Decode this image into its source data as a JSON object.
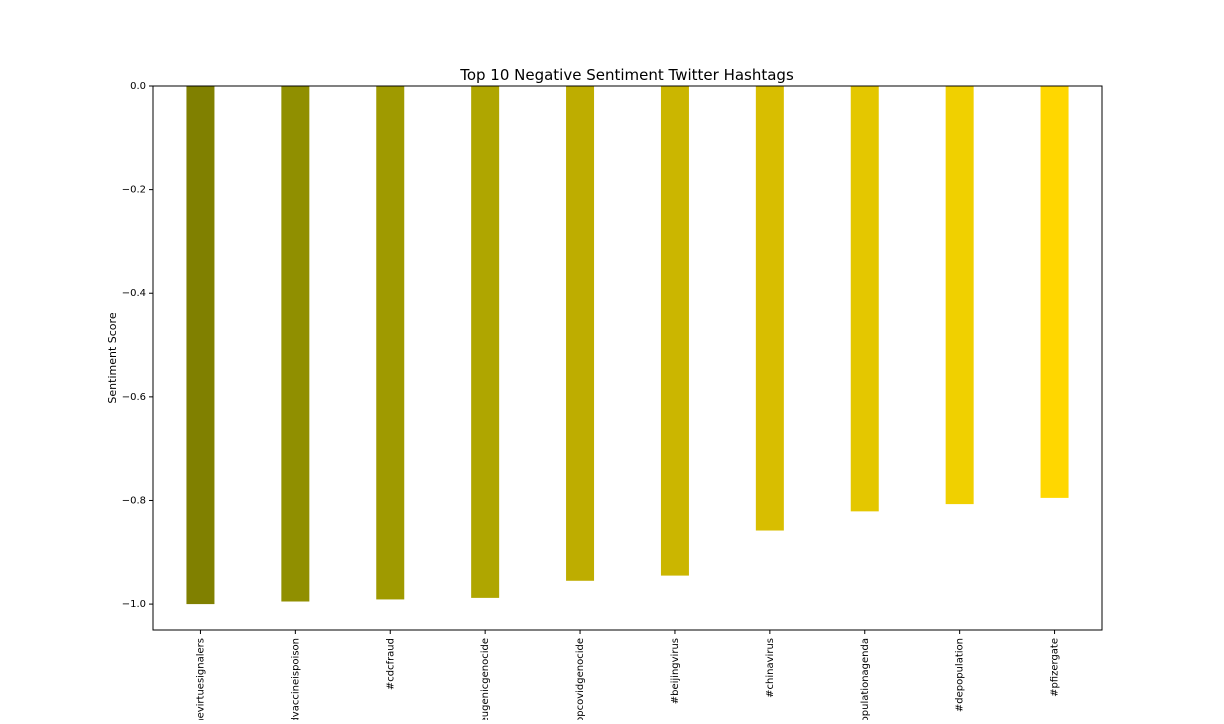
{
  "chart_data": {
    "type": "bar",
    "title": "Top 10 Negative Sentiment Twitter Hashtags",
    "xlabel": "",
    "ylabel": "Sentiment Score",
    "categories": [
      "#thevirtuesignalers",
      "#covidvaccineispoison",
      "#cdcfraud",
      "#eugenicgenocide",
      "#depopcovidgenocide",
      "#beijingvirus",
      "#chinavirus",
      "#depopulationagenda",
      "#depopulation",
      "#pfizergate"
    ],
    "values": [
      -1.0,
      -0.995,
      -0.991,
      -0.988,
      -0.955,
      -0.945,
      -0.858,
      -0.821,
      -0.807,
      -0.795
    ],
    "colors": [
      "#808000",
      "#908f00",
      "#9f9a00",
      "#afa600",
      "#bead00",
      "#cbb600",
      "#d8be00",
      "#e4c700",
      "#f0d000",
      "#ffd700"
    ],
    "ylim": [
      -1.05,
      0.0
    ],
    "yticks": [
      0.0,
      -0.2,
      -0.4,
      -0.6,
      -0.8,
      -1.0
    ],
    "ytick_labels": [
      "0.0",
      "−0.2",
      "−0.4",
      "−0.6",
      "−0.8",
      "−1.0"
    ],
    "grid": false,
    "legend": "none"
  }
}
